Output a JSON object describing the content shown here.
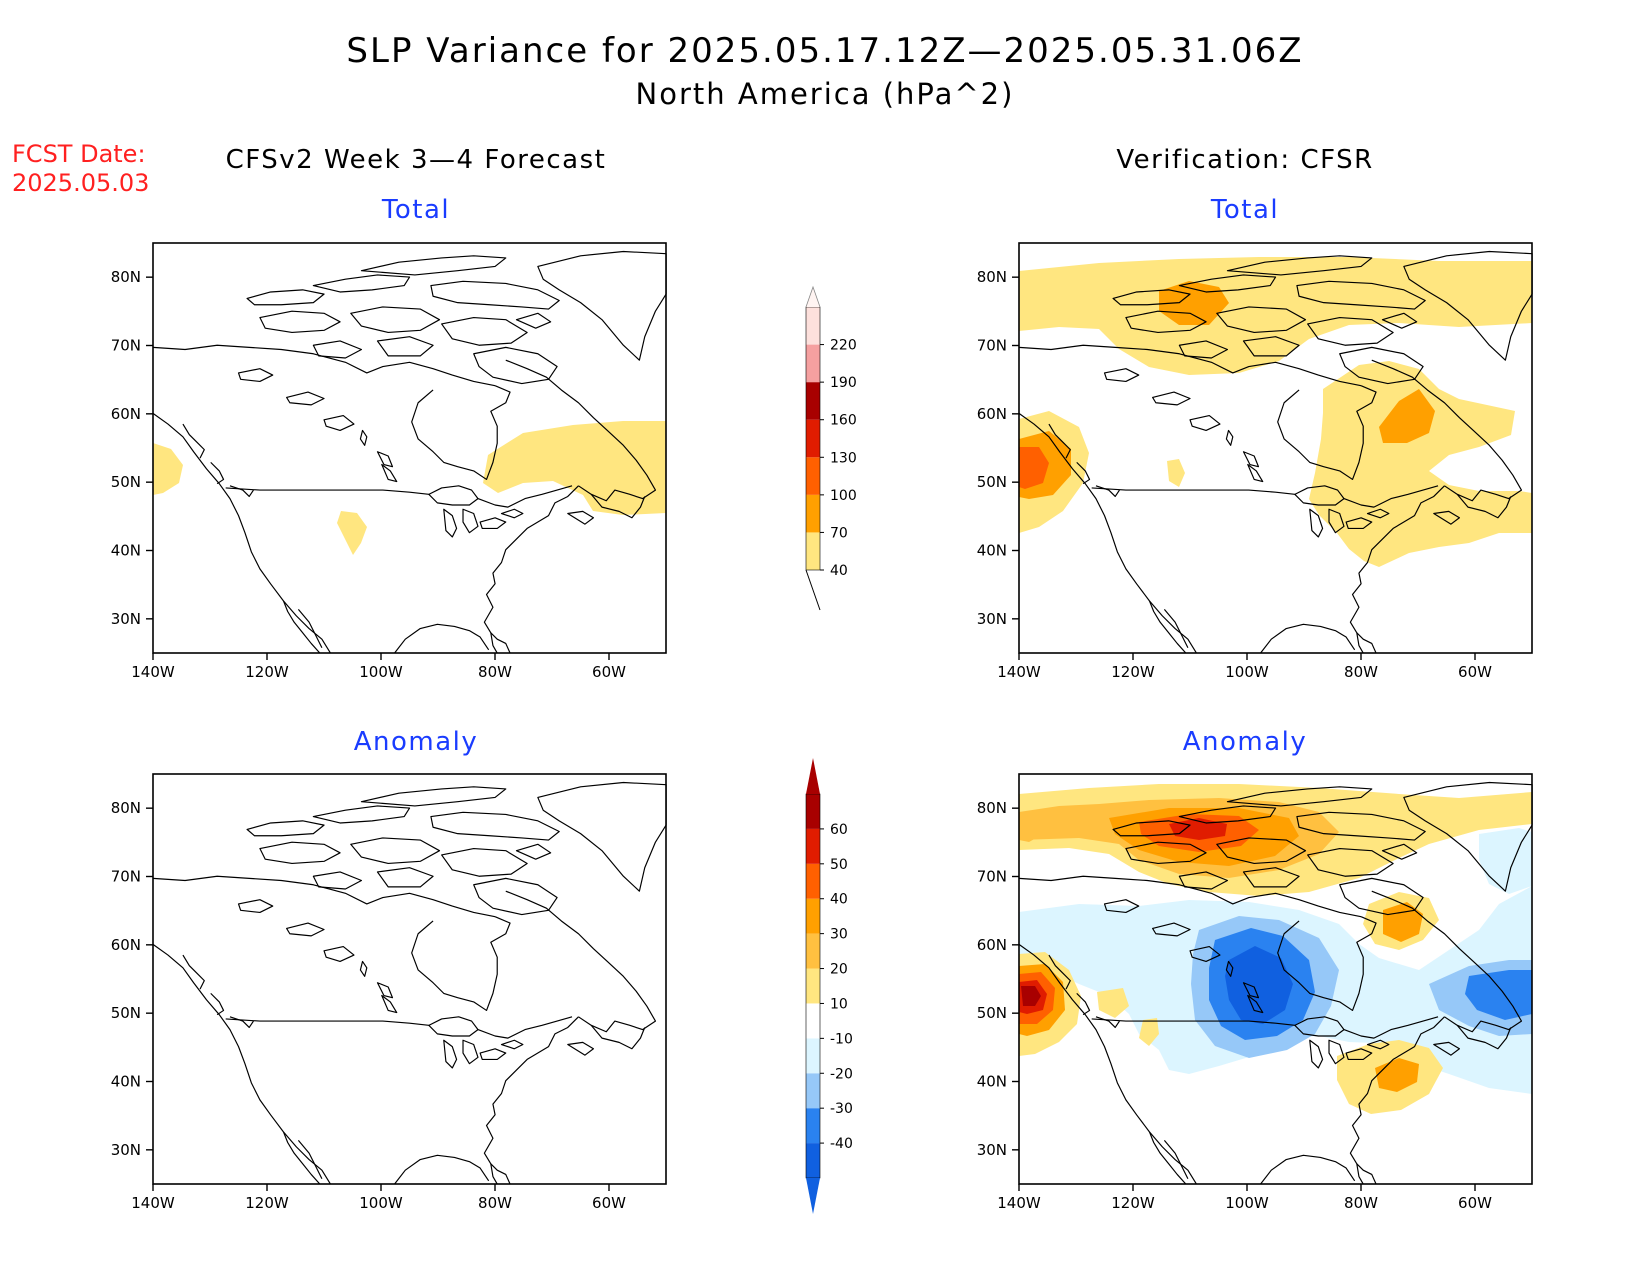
{
  "title": "SLP Variance for 2025.05.17.12Z—2025.05.31.06Z",
  "subtitle": "North America (hPa^2)",
  "fcst_date_label": "FCST Date:",
  "fcst_date_value": "2025.05.03",
  "columns": [
    {
      "heading": "CFSv2 Week 3—4 Forecast"
    },
    {
      "heading": "Verification: CFSR"
    }
  ],
  "panel_labels": {
    "total": "Total",
    "anomaly": "Anomaly"
  },
  "axes": {
    "lon_ticks": [
      "140W",
      "120W",
      "100W",
      "80W",
      "60W"
    ],
    "lat_ticks": [
      "80N",
      "70N",
      "60N",
      "50N",
      "40N",
      "30N"
    ],
    "lon_range": [
      -140,
      -50
    ],
    "lat_range": [
      25,
      85
    ]
  },
  "colorbars": {
    "total": {
      "ticks": [
        "40",
        "70",
        "100",
        "130",
        "160",
        "190",
        "220"
      ],
      "colors": [
        "#ffe680",
        "#ffa000",
        "#ff6000",
        "#e01c00",
        "#a80000",
        "#f5a0a0",
        "#fde0dc"
      ]
    },
    "anomaly": {
      "ticks": [
        "-40",
        "-30",
        "-20",
        "-10",
        "10",
        "20",
        "30",
        "40",
        "50",
        "60"
      ],
      "colors": [
        "#1060e0",
        "#2a82f0",
        "#96c8f8",
        "#dcf5ff",
        "#ffffff",
        "#ffe680",
        "#ffc040",
        "#ffa000",
        "#ff6000",
        "#e01c00",
        "#a80000"
      ]
    }
  }
}
